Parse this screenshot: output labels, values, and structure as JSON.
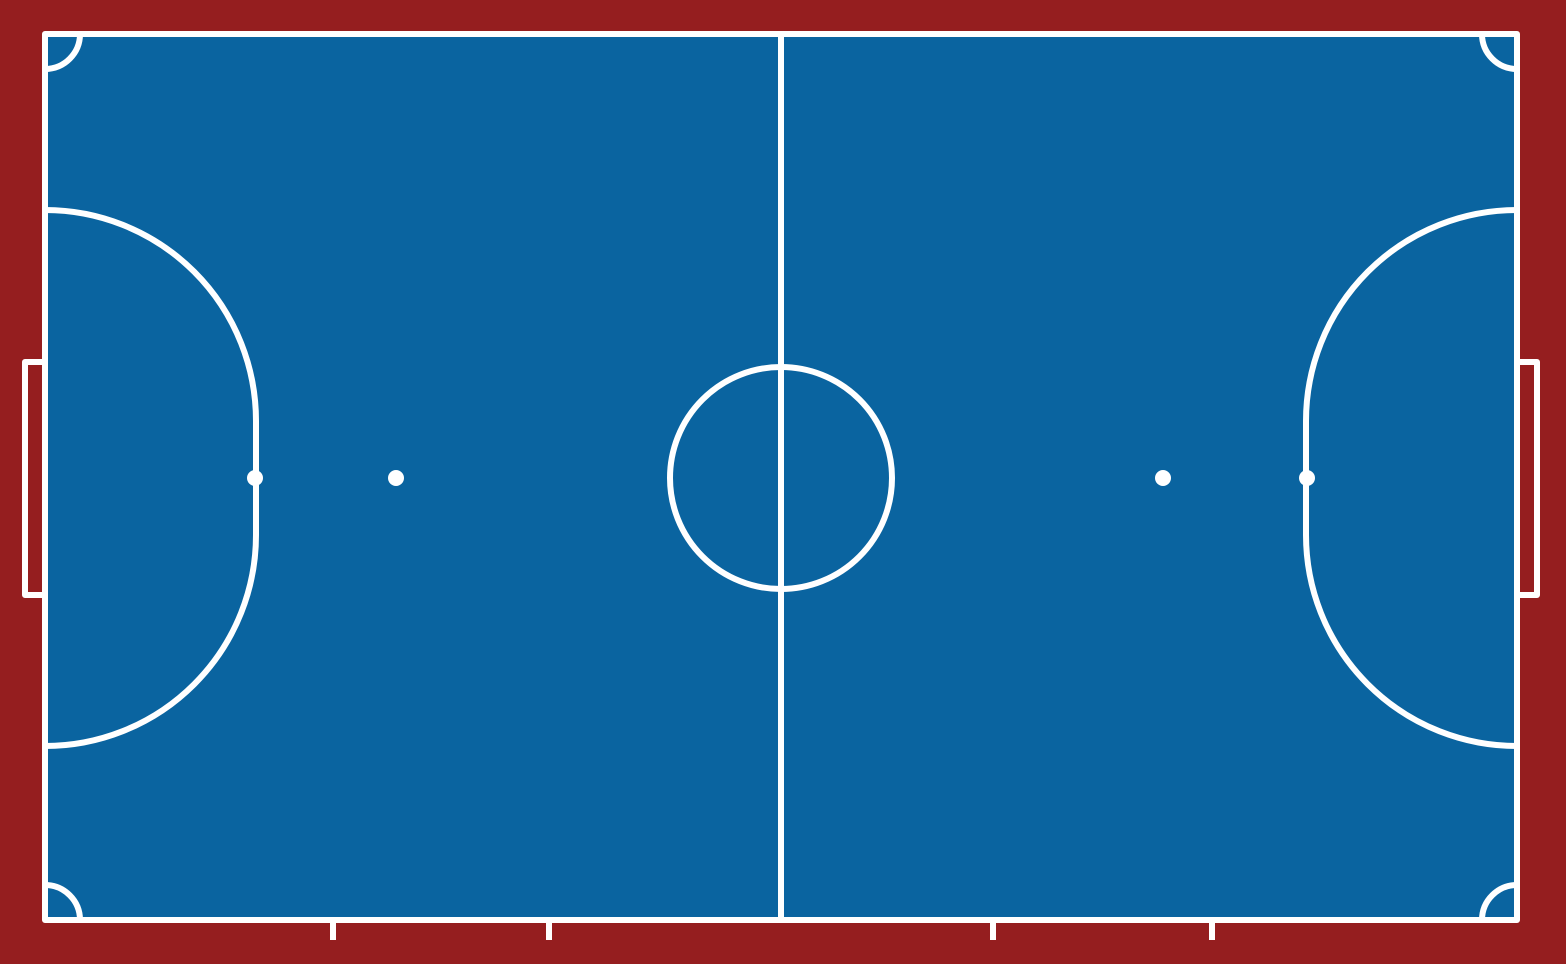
{
  "court": {
    "sport": "futsal",
    "colors": {
      "surround": "#951e1f",
      "playing_surface": "#0a64a0",
      "lines": "#ffffff"
    }
  }
}
